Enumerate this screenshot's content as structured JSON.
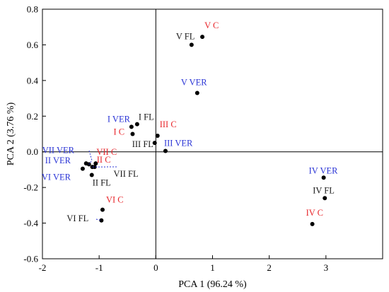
{
  "chart_data": {
    "type": "scatter",
    "xlabel": "PCA 1 (96.24 %)",
    "ylabel": "PCA 2 (3.76 %)",
    "xlim": [
      -2,
      4
    ],
    "ylim": [
      -0.6,
      0.8
    ],
    "xticks": [
      -2,
      -1,
      0,
      1,
      2,
      3
    ],
    "yticks": [
      -0.6,
      -0.4,
      -0.2,
      0.0,
      0.2,
      0.4,
      0.6,
      0.8
    ],
    "ytick_labels": [
      "-0.6",
      "-0.4",
      "-0.2",
      "0.0",
      "0.2",
      "0.4",
      "0.6",
      "0.8"
    ],
    "reference_lines": {
      "x": 0,
      "y": 0
    },
    "grid": false,
    "group_colors": {
      "FL": "#1a1a1a",
      "C": "#e8262b",
      "VER": "#2b35d6"
    },
    "points": [
      {
        "label": "V FL",
        "group": "FL",
        "x": 0.63,
        "y": 0.6
      },
      {
        "label": "V C",
        "group": "C",
        "x": 0.82,
        "y": 0.645
      },
      {
        "label": "V VER",
        "group": "VER",
        "x": 0.73,
        "y": 0.33
      },
      {
        "label": "I VER",
        "group": "VER",
        "x": -0.43,
        "y": 0.14
      },
      {
        "label": "I FL",
        "group": "FL",
        "x": -0.33,
        "y": 0.155
      },
      {
        "label": "I C",
        "group": "C",
        "x": -0.41,
        "y": 0.1
      },
      {
        "label": "III C",
        "group": "C",
        "x": 0.03,
        "y": 0.09
      },
      {
        "label": "III FL",
        "group": "FL",
        "x": -0.02,
        "y": 0.05
      },
      {
        "label": "III VER",
        "group": "VER",
        "x": 0.17,
        "y": 0.005
      },
      {
        "label": "VII VER",
        "group": "VER",
        "x": -1.18,
        "y": -0.07
      },
      {
        "label": "VII C",
        "group": "C",
        "x": -1.06,
        "y": -0.065
      },
      {
        "label": "II C",
        "group": "C",
        "x": -1.08,
        "y": -0.085
      },
      {
        "label": "II VER",
        "group": "VER",
        "x": -1.23,
        "y": -0.065
      },
      {
        "label": "VII FL",
        "group": "FL",
        "x": -1.12,
        "y": -0.085
      },
      {
        "label": "VI VER",
        "group": "VER",
        "x": -1.29,
        "y": -0.095
      },
      {
        "label": "II FL",
        "group": "FL",
        "x": -1.13,
        "y": -0.13
      },
      {
        "label": "IV VER",
        "group": "VER",
        "x": 2.96,
        "y": -0.145
      },
      {
        "label": "IV FL",
        "group": "FL",
        "x": 2.98,
        "y": -0.26
      },
      {
        "label": "IV C",
        "group": "C",
        "x": 2.76,
        "y": -0.405
      },
      {
        "label": "VI C",
        "group": "C",
        "x": -0.94,
        "y": -0.325
      },
      {
        "label": "VI FL",
        "group": "FL",
        "x": -0.96,
        "y": -0.385
      }
    ]
  }
}
